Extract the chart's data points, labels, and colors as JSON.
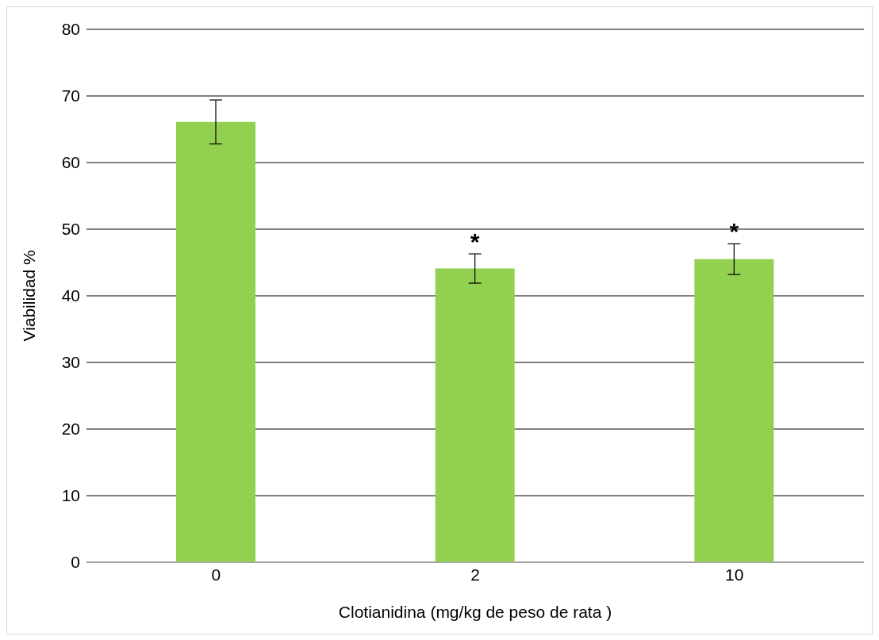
{
  "chart_data": {
    "type": "bar",
    "categories": [
      "0",
      "2",
      "10"
    ],
    "values": [
      66.1,
      44.1,
      45.5
    ],
    "errors": [
      3.3,
      2.2,
      2.3
    ],
    "color": "#92d050",
    "xlabel": "Clotianidina (mg/kg de peso de rata )",
    "ylabel": "Viabilidad %",
    "ylim": [
      0,
      80
    ],
    "yticks": [
      0,
      10,
      20,
      30,
      40,
      50,
      60,
      70,
      80
    ],
    "grid": "y",
    "value_labels": [
      null,
      "*",
      "*"
    ]
  }
}
